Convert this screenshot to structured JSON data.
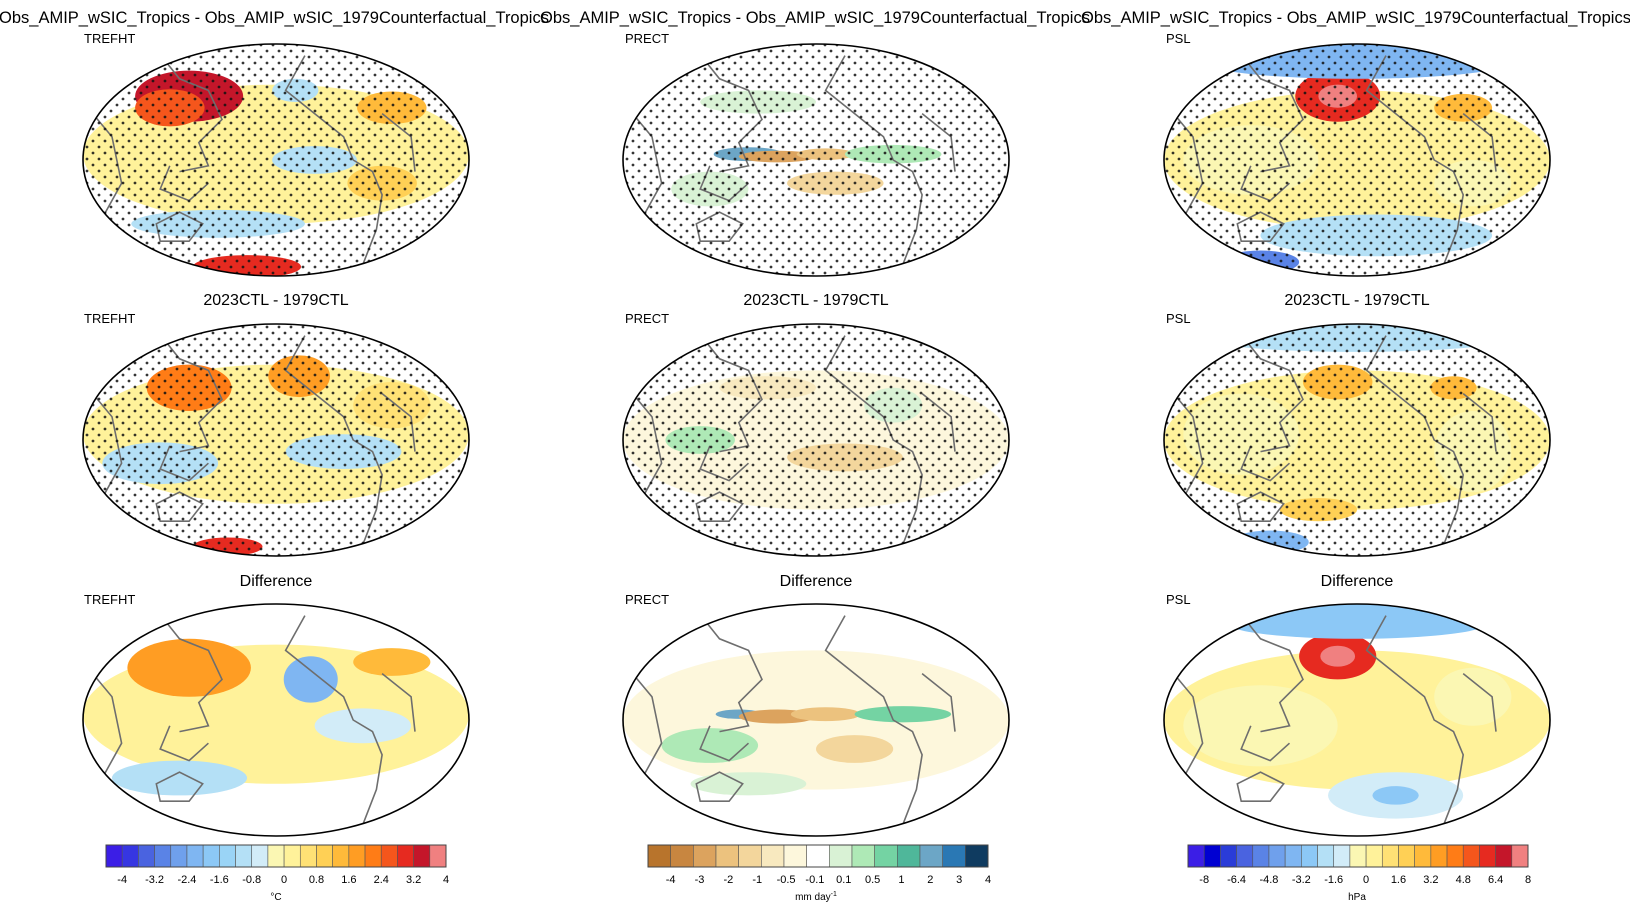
{
  "figure": {
    "column_titles": [
      "Obs_AMIP_wSIC_Tropics - Obs_AMIP_wSIC_1979Counterfactual_Tropics",
      "Obs_AMIP_wSIC_Tropics - Obs_AMIP_wSIC_1979Counterfactual_Tropics",
      "Obs_AMIP_wSIC_Tropics - Obs_AMIP_wSIC_1979Counterfactual_Tropics"
    ],
    "row_titles": [
      "",
      "2023CTL - 1979CTL",
      "Difference"
    ],
    "variables": [
      "TREFHT",
      "PRECT",
      "PSL"
    ],
    "colorbar_units": [
      "°C",
      "mm day",
      "hPa"
    ],
    "unit_superscript": "-1"
  },
  "chart_data": [
    {
      "type": "heatmap",
      "projection": "global map (Robinson/Winkel-style, Pacific-centred)",
      "variable": "TREFHT",
      "panels": [
        {
          "row_title": "",
          "stippling": true,
          "features": [
            "warm Siberia/East Asia up to ~3.6",
            "cool central Pacific ~-0.8",
            "warm Southern Ocean/Antarctic ~3.2"
          ]
        },
        {
          "row_title": "2023CTL - 1979CTL",
          "stippling": true,
          "features": [
            "warm East Asia ~2.4",
            "warm Canadian Arctic ~2.4",
            "mixed tropical Pacific"
          ]
        },
        {
          "row_title": "Difference",
          "stippling": false,
          "features": [
            "warm Eurasia ~2",
            "cool NE Canada ~-2",
            "weak tropics"
          ]
        }
      ],
      "colorbar": {
        "levels": [
          -4,
          -3.6,
          -3.2,
          -2.8,
          -2.4,
          -2,
          -1.6,
          -1.2,
          -0.8,
          -0.4,
          0,
          0.4,
          0.8,
          1.2,
          1.6,
          2,
          2.4,
          2.8,
          3.2,
          3.6,
          4
        ],
        "tick_labels": [
          "-4",
          "-3.2",
          "-2.4",
          "-1.6",
          "-0.8",
          "0",
          "0.8",
          "1.6",
          "2.4",
          "3.2",
          "4"
        ],
        "colors": [
          "#3b1ee6",
          "#3636e2",
          "#4a63e0",
          "#5a83e6",
          "#6fa0ec",
          "#7fb6f2",
          "#8cc8f6",
          "#9ad4f6",
          "#b4e0f6",
          "#d2ecf8",
          "#fbf7b3",
          "#fff29a",
          "#ffe175",
          "#ffd055",
          "#ffba3a",
          "#ff9d23",
          "#ff7c16",
          "#f5561c",
          "#e62a20",
          "#c4162a",
          "#f08080"
        ]
      }
    },
    {
      "type": "heatmap",
      "projection": "global map (Robinson/Winkel-style, Pacific-centred)",
      "variable": "PRECT",
      "panels": [
        {
          "row_title": "",
          "stippling": true,
          "features": [
            "wet Maritime Continent/W Pacific ~4",
            "dry central equatorial Pacific ~-2",
            "wet tropical Atlantic ~1"
          ]
        },
        {
          "row_title": "2023CTL - 1979CTL",
          "stippling": true,
          "features": [
            "weak mixed anomalies ~±0.5"
          ]
        },
        {
          "row_title": "Difference",
          "stippling": false,
          "features": [
            "wet W Pacific ~4",
            "dry central Pacific ~-2",
            "wet Atlantic ITCZ ~2"
          ]
        }
      ],
      "colorbar": {
        "levels": [
          -5,
          -4,
          -3,
          -2,
          -1,
          -0.5,
          -0.1,
          0.1,
          0.5,
          1,
          2,
          3,
          4,
          5
        ],
        "tick_labels": [
          "-4",
          "-3",
          "-2",
          "-1",
          "-0.5",
          "-0.1",
          "0.1",
          "0.5",
          "1",
          "2",
          "3",
          "4"
        ],
        "colors": [
          "#b8742c",
          "#c88640",
          "#dca35e",
          "#ecc27e",
          "#f3d69c",
          "#f8e9bf",
          "#fdf7dc",
          "#ffffff",
          "#d9f2d5",
          "#aee9b6",
          "#74d3a3",
          "#4fb79a",
          "#6ca6c6",
          "#2a78b4",
          "#0f3b60"
        ]
      }
    },
    {
      "type": "heatmap",
      "projection": "global map (Robinson/Winkel-style, Pacific-centred)",
      "variable": "PSL",
      "panels": [
        {
          "row_title": "",
          "stippling": true,
          "features": [
            "strong high over N Pacific/Aleutians ~8",
            "low over Arctic ~-4",
            "low Southern Ocean ~-6"
          ]
        },
        {
          "row_title": "2023CTL - 1979CTL",
          "stippling": true,
          "features": [
            "weak high N Pacific ~2",
            "low Southern Ocean ~-4"
          ]
        },
        {
          "row_title": "Difference",
          "stippling": false,
          "features": [
            "strong high N Pacific ~8",
            "low Arctic ~-3",
            "low South Pacific ~-2"
          ]
        }
      ],
      "colorbar": {
        "levels": [
          -9,
          -8,
          -7.2,
          -6.4,
          -5.6,
          -4.8,
          -4,
          -3.2,
          -2.4,
          -1.6,
          -0.8,
          0,
          0.8,
          1.6,
          2.4,
          3.2,
          4,
          4.8,
          5.6,
          6.4,
          7.2,
          8,
          9
        ],
        "tick_labels": [
          "-8",
          "-6.4",
          "-4.8",
          "-3.2",
          "-1.6",
          "0",
          "1.6",
          "3.2",
          "4.8",
          "6.4",
          "8"
        ],
        "colors": [
          "#3b1ee6",
          "#0000d2",
          "#2a3cd8",
          "#4a63e0",
          "#5a83e6",
          "#6fa0ec",
          "#7fb6f2",
          "#8cc8f6",
          "#b4e0f6",
          "#d2ecf8",
          "#fbf7b3",
          "#fff29a",
          "#ffe175",
          "#ffd055",
          "#ffba3a",
          "#ff9d23",
          "#ff7c16",
          "#f5561c",
          "#e62a20",
          "#c4162a",
          "#f08080"
        ]
      }
    }
  ]
}
